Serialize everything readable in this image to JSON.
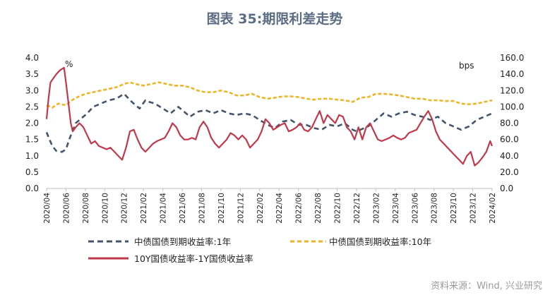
{
  "chart_data": {
    "type": "line",
    "title": "图表 35:期限利差走势",
    "source": "资料来源：Wind, 兴业研究",
    "left_unit": "%",
    "right_unit": "bps",
    "y_left": {
      "min": 0,
      "max": 4,
      "ticks": [
        "0.0",
        "0.5",
        "1.0",
        "1.5",
        "2.0",
        "2.5",
        "3.0",
        "3.5",
        "4.0"
      ]
    },
    "y_right": {
      "min": 0,
      "max": 160,
      "ticks": [
        "0.0",
        "20.0",
        "40.0",
        "60.0",
        "80.0",
        "100.0",
        "120.0",
        "140.0",
        "160.0"
      ]
    },
    "x_ticks": [
      "2020/04",
      "2020/06",
      "2020/08",
      "2020/10",
      "2020/12",
      "2021/02",
      "2021/04",
      "2021/06",
      "2021/08",
      "2021/10",
      "2021/12",
      "2022/02",
      "2022/04",
      "2022/06",
      "2022/08",
      "2022/10",
      "2022/12",
      "2023/02",
      "2023/04",
      "2023/06",
      "2023/08",
      "2023/10",
      "2023/12",
      "2024/02"
    ],
    "x_range": [
      0,
      23
    ],
    "series": [
      {
        "name": "中债国债到期收益率:1年",
        "axis": "left",
        "color": "#44546a",
        "style": "dashed",
        "x": [
          0,
          0.15,
          0.3,
          0.5,
          0.8,
          1.0,
          1.2,
          1.5,
          1.8,
          2.1,
          2.4,
          2.8,
          3.2,
          3.6,
          4.0,
          4.4,
          4.8,
          5.1,
          5.3,
          5.6,
          6.0,
          6.4,
          6.8,
          7.1,
          7.4,
          7.8,
          8.2,
          8.6,
          9.0,
          9.4,
          9.8,
          10.2,
          10.6,
          11.0,
          11.4,
          11.8,
          12.2,
          12.6,
          13.0,
          13.4,
          13.8,
          14.2,
          14.6,
          15.0,
          15.4,
          15.8,
          16.0,
          16.2,
          16.6,
          17.0,
          17.4,
          17.8,
          18.2,
          18.6,
          19.0,
          19.4,
          19.8,
          20.2,
          20.6,
          21.0,
          21.4,
          21.8,
          22.2,
          22.6,
          23.0
        ],
        "values": [
          1.72,
          1.5,
          1.3,
          1.15,
          1.12,
          1.2,
          1.55,
          2.0,
          2.15,
          2.3,
          2.5,
          2.6,
          2.7,
          2.75,
          2.9,
          2.65,
          2.45,
          2.7,
          2.65,
          2.6,
          2.45,
          2.3,
          2.5,
          2.35,
          2.2,
          2.35,
          2.4,
          2.3,
          2.4,
          2.3,
          2.25,
          2.3,
          2.25,
          2.1,
          1.95,
          1.85,
          2.05,
          2.1,
          1.95,
          1.95,
          1.85,
          1.8,
          1.95,
          1.9,
          2.0,
          1.8,
          1.75,
          1.8,
          1.9,
          2.1,
          2.3,
          2.2,
          2.3,
          2.35,
          2.25,
          2.2,
          2.1,
          2.2,
          2.0,
          1.9,
          1.8,
          1.9,
          2.1,
          2.2,
          2.3
        ]
      },
      {
        "name": "中债国债到期收益率:10年",
        "axis": "left",
        "color": "#f0b323",
        "style": "dashed",
        "x": [
          0,
          0.3,
          0.6,
          1.0,
          1.3,
          1.6,
          2.0,
          2.4,
          2.8,
          3.2,
          3.6,
          4.0,
          4.3,
          4.6,
          5.0,
          5.4,
          5.8,
          6.2,
          6.6,
          7.0,
          7.4,
          7.8,
          8.2,
          8.6,
          9.0,
          9.4,
          9.8,
          10.2,
          10.6,
          11.0,
          11.4,
          11.8,
          12.2,
          12.6,
          13.0,
          13.4,
          13.8,
          14.2,
          14.6,
          15.0,
          15.4,
          15.8,
          16.2,
          16.6,
          17.0,
          17.4,
          17.8,
          18.2,
          18.6,
          19.0,
          19.4,
          19.8,
          20.2,
          20.6,
          21.0,
          21.4,
          21.8,
          22.2,
          22.6,
          23.0
        ],
        "values": [
          2.55,
          2.48,
          2.6,
          2.55,
          2.7,
          2.8,
          2.9,
          2.95,
          3.0,
          3.05,
          3.1,
          3.2,
          3.25,
          3.2,
          3.15,
          3.2,
          3.25,
          3.2,
          3.15,
          3.15,
          3.1,
          3.0,
          2.95,
          2.95,
          3.0,
          2.95,
          2.85,
          2.85,
          2.9,
          2.8,
          2.75,
          2.78,
          2.82,
          2.82,
          2.8,
          2.75,
          2.72,
          2.75,
          2.75,
          2.72,
          2.7,
          2.65,
          2.78,
          2.8,
          2.9,
          2.9,
          2.88,
          2.85,
          2.8,
          2.75,
          2.75,
          2.7,
          2.7,
          2.68,
          2.68,
          2.6,
          2.58,
          2.6,
          2.65,
          2.7
        ]
      },
      {
        "name": "10Y国债收益率-1Y国债收益率",
        "axis": "right",
        "color": "#c0394b",
        "style": "solid",
        "x": [
          0,
          0.1,
          0.2,
          0.35,
          0.5,
          0.7,
          0.9,
          1.0,
          1.1,
          1.25,
          1.35,
          1.5,
          1.7,
          1.9,
          2.1,
          2.3,
          2.5,
          2.7,
          2.9,
          3.1,
          3.3,
          3.5,
          3.7,
          3.9,
          4.1,
          4.3,
          4.5,
          4.7,
          4.9,
          5.1,
          5.3,
          5.5,
          5.7,
          5.9,
          6.1,
          6.3,
          6.5,
          6.7,
          6.9,
          7.1,
          7.3,
          7.5,
          7.7,
          7.9,
          8.1,
          8.3,
          8.5,
          8.7,
          8.9,
          9.1,
          9.3,
          9.5,
          9.7,
          9.9,
          10.1,
          10.3,
          10.5,
          10.7,
          10.9,
          11.1,
          11.3,
          11.5,
          11.7,
          11.9,
          12.1,
          12.3,
          12.5,
          12.7,
          12.9,
          13.1,
          13.3,
          13.5,
          13.7,
          13.9,
          14.1,
          14.3,
          14.5,
          14.7,
          14.9,
          15.1,
          15.3,
          15.5,
          15.7,
          15.9,
          16.1,
          16.3,
          16.5,
          16.7,
          16.9,
          17.1,
          17.3,
          17.5,
          17.7,
          17.9,
          18.1,
          18.3,
          18.5,
          18.7,
          18.9,
          19.1,
          19.3,
          19.5,
          19.7,
          19.9,
          20.1,
          20.3,
          20.5,
          20.7,
          20.9,
          21.1,
          21.3,
          21.5,
          21.7,
          21.9,
          22.1,
          22.3,
          22.5,
          22.7,
          22.9,
          23.0
        ],
        "values": [
          85,
          110,
          130,
          135,
          140,
          145,
          148,
          130,
          110,
          80,
          70,
          75,
          80,
          75,
          65,
          55,
          58,
          52,
          50,
          48,
          50,
          45,
          40,
          35,
          50,
          70,
          72,
          60,
          50,
          45,
          50,
          55,
          58,
          60,
          62,
          70,
          80,
          75,
          65,
          60,
          60,
          62,
          60,
          75,
          82,
          75,
          62,
          55,
          50,
          55,
          60,
          68,
          65,
          60,
          65,
          60,
          50,
          55,
          60,
          70,
          85,
          80,
          72,
          75,
          78,
          80,
          70,
          72,
          75,
          80,
          72,
          70,
          75,
          85,
          95,
          80,
          90,
          85,
          80,
          90,
          88,
          75,
          70,
          60,
          75,
          60,
          75,
          80,
          70,
          60,
          58,
          60,
          62,
          65,
          62,
          60,
          62,
          68,
          70,
          72,
          80,
          88,
          95,
          85,
          70,
          60,
          55,
          50,
          45,
          40,
          35,
          30,
          40,
          45,
          28,
          32,
          38,
          45,
          58,
          52
        ]
      }
    ],
    "legend": [
      {
        "label": "中债国债到期收益率:1年",
        "color": "#44546a",
        "style": "dashed"
      },
      {
        "label": "中债国债到期收益率:10年",
        "color": "#f0b323",
        "style": "dashed"
      },
      {
        "label": "10Y国债收益率-1Y国债收益率",
        "color": "#c0394b",
        "style": "solid"
      }
    ]
  }
}
